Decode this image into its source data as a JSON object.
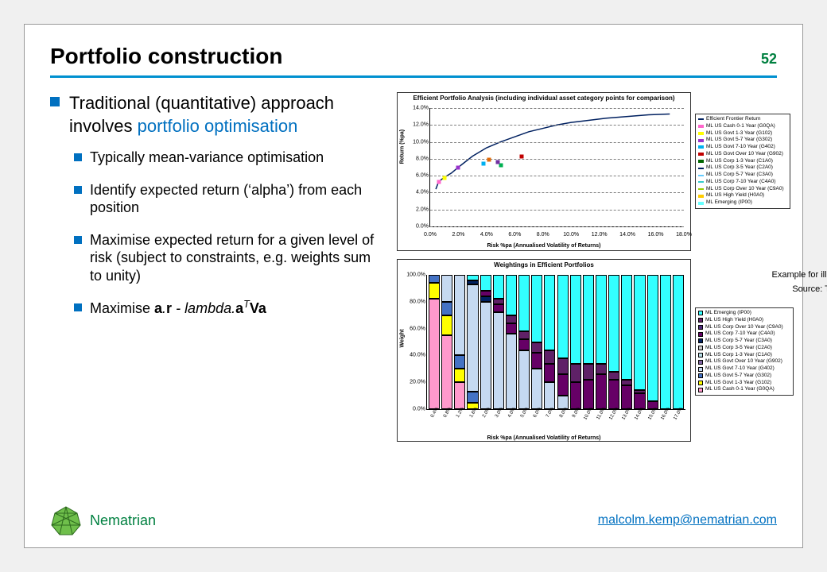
{
  "slide": {
    "title": "Portfolio construction",
    "page_number": "52",
    "rule_color": "#0090d0",
    "bullet_color": "#0070c0",
    "main_bullet": {
      "prefix": "Traditional (quantitative) approach involves ",
      "link_text": "portfolio optimisation"
    },
    "sub_bullets": [
      "Typically mean-variance optimisation",
      "Identify expected return (‘alpha’) from each position",
      "Maximise expected return for a given level of risk (subject to constraints, e.g. weights sum to unity)"
    ],
    "formula_prefix": "Maximise "
  },
  "line_chart": {
    "type": "line+scatter",
    "title": "Efficient Portfolio Analysis (including individual asset category points for comparison)",
    "xlabel": "Risk %pa (Annualised Volatility of Returns)",
    "ylabel": "Return (%pa)",
    "ylim": [
      0,
      14
    ],
    "ytick_step": 2,
    "ytick_fmt_suffix": ".0%",
    "xlim": [
      0,
      18
    ],
    "xtick_step": 2,
    "xtick_fmt_suffix": ".0%",
    "grid_color": "#7f7f7f",
    "frontier_color": "#002060",
    "frontier": [
      [
        0.4,
        4.4
      ],
      [
        0.6,
        5.3
      ],
      [
        1.0,
        5.8
      ],
      [
        1.5,
        6.3
      ],
      [
        2.0,
        7.0
      ],
      [
        3.0,
        8.3
      ],
      [
        4.0,
        9.3
      ],
      [
        5.0,
        10.0
      ],
      [
        6.0,
        10.6
      ],
      [
        7.0,
        11.2
      ],
      [
        8.0,
        11.6
      ],
      [
        9.0,
        12.0
      ],
      [
        10.0,
        12.3
      ],
      [
        11.0,
        12.5
      ],
      [
        12.5,
        12.8
      ],
      [
        14.0,
        13.0
      ],
      [
        15.5,
        13.2
      ],
      [
        17.0,
        13.3
      ]
    ],
    "points": [
      {
        "x": 0.6,
        "y": 5.3,
        "color": "#ff66cc"
      },
      {
        "x": 1.0,
        "y": 5.7,
        "color": "#ffff00"
      },
      {
        "x": 2.0,
        "y": 7.0,
        "color": "#9933cc"
      },
      {
        "x": 3.8,
        "y": 7.4,
        "color": "#00b0f0"
      },
      {
        "x": 5.0,
        "y": 7.2,
        "color": "#00b050"
      },
      {
        "x": 6.5,
        "y": 8.3,
        "color": "#c00000"
      },
      {
        "x": 4.2,
        "y": 7.9,
        "color": "#e26b0a"
      },
      {
        "x": 4.8,
        "y": 7.6,
        "color": "#7030a0"
      }
    ],
    "legend": [
      {
        "label": "Efficient Frontier Return",
        "color": "#002060",
        "kind": "line"
      },
      {
        "label": "ML US Cash 0-1 Year (G0QA)",
        "color": "#ff66cc",
        "kind": "sq"
      },
      {
        "label": "ML US Govt 1-3 Year (G102)",
        "color": "#ffff00",
        "kind": "sq"
      },
      {
        "label": "ML US Govt 5-7 Year (G302)",
        "color": "#9933cc",
        "kind": "x"
      },
      {
        "label": "ML US Govt 7-10 Year (G402)",
        "color": "#00b0f0",
        "kind": "x"
      },
      {
        "label": "ML US Govt Over 10 Year (G902)",
        "color": "#c00000",
        "kind": "dot"
      },
      {
        "label": "ML US Corp 1-3 Year (C1A0)",
        "color": "#006600",
        "kind": "dot"
      },
      {
        "label": "ML US Corp 3-5 Year (C2A0)",
        "color": "#002060",
        "kind": "line"
      },
      {
        "label": "ML US Corp 5-7 Year (C3A0)",
        "color": "#66ccff",
        "kind": "line"
      },
      {
        "label": "ML US Corp 7-10 Year (C4A0)",
        "color": "#33cccc",
        "kind": "line"
      },
      {
        "label": "ML US Corp Over 10 Year (C9A0)",
        "color": "#99cc00",
        "kind": "line"
      },
      {
        "label": "ML US High Yield (H0A0)",
        "color": "#ffcc00",
        "kind": "sq"
      },
      {
        "label": "ML Emerging (IP00)",
        "color": "#66ffff",
        "kind": "sq"
      }
    ]
  },
  "bar_chart": {
    "type": "stacked-bar",
    "title": "Weightings in Efficient Portfolios",
    "xlabel": "Risk %pa (Annualised Volatility of Returns)",
    "ylabel": "Weight",
    "ylim": [
      0,
      100
    ],
    "ytick_step": 20,
    "ytick_fmt_suffix": "0.0%",
    "categories": [
      "0.4",
      "0.8",
      "1.2",
      "1.6",
      "2.0",
      "3.0",
      "4.0",
      "5.0",
      "6.0",
      "7.0",
      "8.0",
      "9.0",
      "10.0",
      "11.0",
      "12.0",
      "13.0",
      "14.0",
      "15.0",
      "16.0",
      "17.0"
    ],
    "series_colors": {
      "cash": "#ff99cc",
      "govt13": "#ffff00",
      "govt57": "#4472c4",
      "govt710": "#c5d9f1",
      "govt10": "#8064a2",
      "corp13": "#b7dee8",
      "corp35": "#cccccc",
      "corp57": "#002060",
      "corp710": "#660066",
      "corp10": "#4f2d7f",
      "hy": "#5f2167",
      "emerging": "#33ffff"
    },
    "stacks": [
      {
        "cash": 82,
        "govt13": 12,
        "govt57": 6
      },
      {
        "cash": 55,
        "govt13": 15,
        "govt57": 10,
        "govt710": 20
      },
      {
        "cash": 20,
        "govt13": 10,
        "govt57": 10,
        "govt710": 60
      },
      {
        "govt13": 5,
        "govt57": 8,
        "govt710": 80,
        "corp57": 3,
        "emerging": 4
      },
      {
        "govt710": 80,
        "corp57": 4,
        "corp710": 4,
        "emerging": 12
      },
      {
        "govt710": 72,
        "corp710": 6,
        "hy": 4,
        "emerging": 18
      },
      {
        "govt710": 56,
        "corp710": 8,
        "hy": 6,
        "emerging": 30
      },
      {
        "govt710": 44,
        "corp710": 8,
        "hy": 6,
        "emerging": 42
      },
      {
        "govt710": 30,
        "corp710": 12,
        "hy": 8,
        "emerging": 50
      },
      {
        "govt710": 20,
        "corp710": 14,
        "hy": 10,
        "emerging": 56
      },
      {
        "govt710": 10,
        "corp710": 16,
        "hy": 12,
        "emerging": 62
      },
      {
        "corp710": 20,
        "hy": 14,
        "emerging": 66
      },
      {
        "corp710": 22,
        "hy": 12,
        "emerging": 66
      },
      {
        "corp710": 26,
        "hy": 8,
        "emerging": 66
      },
      {
        "corp710": 22,
        "hy": 6,
        "emerging": 72
      },
      {
        "corp710": 18,
        "hy": 4,
        "emerging": 78
      },
      {
        "corp710": 12,
        "hy": 2,
        "emerging": 86
      },
      {
        "corp710": 6,
        "emerging": 94
      },
      {
        "emerging": 100
      },
      {
        "emerging": 100
      }
    ],
    "legend": [
      {
        "label": "ML Emerging (IP00)",
        "color": "#33ffff"
      },
      {
        "label": "ML US High Yield (H0A0)",
        "color": "#5f2167"
      },
      {
        "label": "ML US Corp Over 10 Year (C9A0)",
        "color": "#4f2d7f"
      },
      {
        "label": "ML US Corp 7-10 Year (C4A0)",
        "color": "#660066"
      },
      {
        "label": "ML US Corp 5-7 Year (C3A0)",
        "color": "#002060"
      },
      {
        "label": "ML US Corp 3-5 Year (C2A0)",
        "color": "#cccccc"
      },
      {
        "label": "ML US Corp 1-3 Year (C1A0)",
        "color": "#b7dee8"
      },
      {
        "label": "ML US Govt Over 10 Year (G902)",
        "color": "#8064a2"
      },
      {
        "label": "ML US Govt 7-10 Year (G402)",
        "color": "#c5d9f1"
      },
      {
        "label": "ML US Govt 5-7 Year (G302)",
        "color": "#4472c4"
      },
      {
        "label": "ML US Govt 1-3 Year (G102)",
        "color": "#ffff00"
      },
      {
        "label": "ML US Cash 0-1 Year (G0QA)",
        "color": "#ff99cc"
      }
    ]
  },
  "notes": {
    "example": "Example for illustration only",
    "source": "Source: Threadneedle"
  },
  "footer": {
    "brand": "Nematrian",
    "brand_color": "#008040",
    "email": "malcolm.kemp@nematrian.com",
    "email_color": "#0070c0"
  }
}
